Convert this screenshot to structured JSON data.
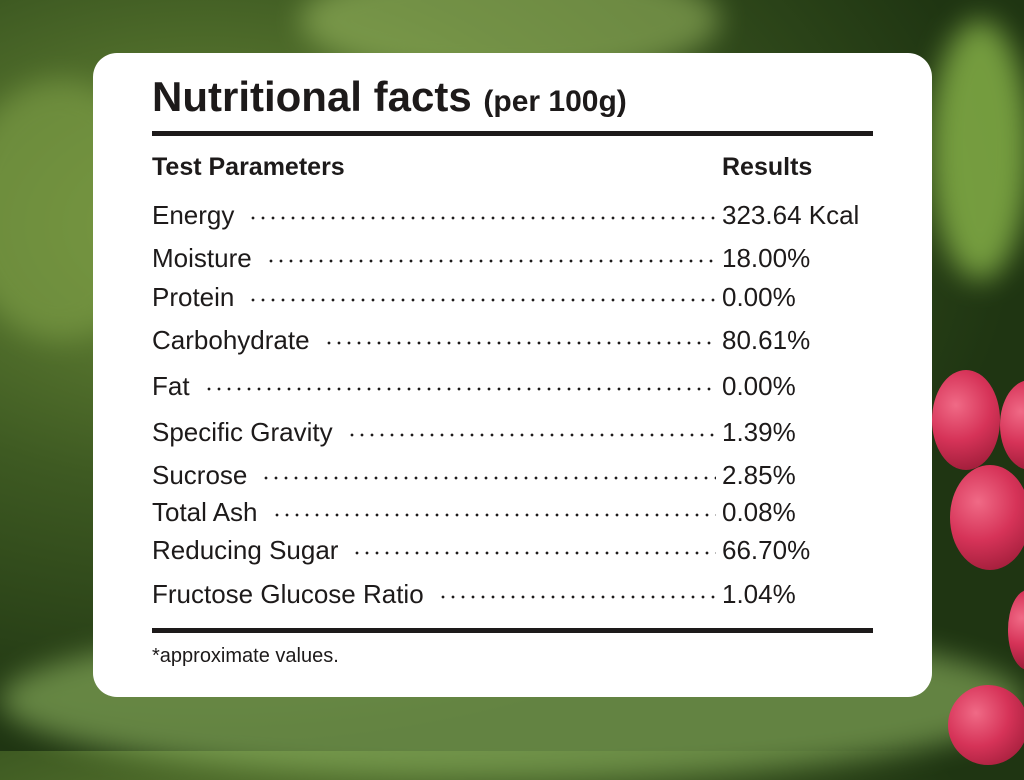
{
  "header": {
    "title": "Nutritional facts",
    "subtitle": "(per 100g)"
  },
  "table": {
    "columns": [
      "Test Parameters",
      "Results"
    ],
    "rows": [
      [
        "Energy",
        "323.64 Kcal"
      ],
      [
        "Moisture",
        "18.00%"
      ],
      [
        "Protein",
        "0.00%"
      ],
      [
        "Carbohydrate",
        "80.61%"
      ],
      [
        "Fat",
        "0.00%"
      ],
      [
        "Specific Gravity",
        "1.39%"
      ],
      [
        "Sucrose",
        "2.85%"
      ],
      [
        "Total Ash",
        "0.08%"
      ],
      [
        "Reducing Sugar",
        "66.70%"
      ],
      [
        "Fructose Glucose Ratio",
        "1.04%"
      ]
    ]
  },
  "footnote": "*approximate values."
}
